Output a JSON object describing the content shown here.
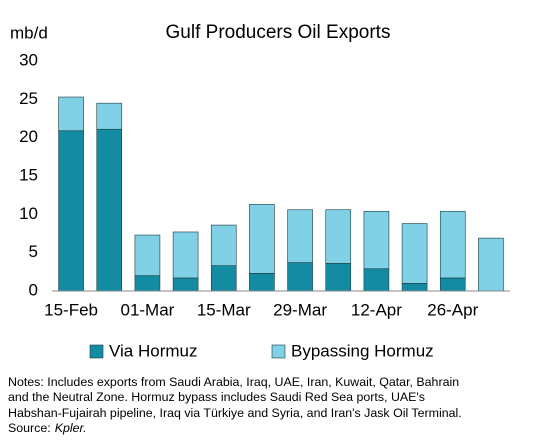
{
  "chart_data": {
    "type": "stacked_bar",
    "title": "Gulf Producers Oil Exports",
    "y_label": "mb/d",
    "categories": [
      "15-Feb",
      null,
      "01-Mar",
      null,
      "15-Mar",
      null,
      "29-Mar",
      null,
      "12-Apr",
      null,
      "26-Apr",
      null
    ],
    "series": [
      {
        "name": "Via Hormuz",
        "color": "#138ca3",
        "values": [
          20.9,
          21.1,
          2.0,
          1.7,
          3.3,
          2.3,
          3.7,
          3.6,
          2.9,
          1.0,
          1.7,
          0
        ]
      },
      {
        "name": "Bypassing Hormuz",
        "color": "#80d0e6",
        "values": [
          4.4,
          3.4,
          5.3,
          6.0,
          5.3,
          9.0,
          6.9,
          7.0,
          7.5,
          7.8,
          8.7,
          6.9
        ]
      }
    ],
    "ylim": [
      0,
      30
    ],
    "yticks": [
      0,
      5,
      10,
      15,
      20,
      25,
      30
    ],
    "grid": false,
    "legend_position": "bottom"
  },
  "notes": [
    "Notes: Includes exports from Saudi Arabia, Iraq, UAE, Iran, Kuwait, Qatar, Bahrain",
    "and the Neutral Zone. Hormuz bypass includes Saudi Red Sea ports, UAE's",
    "Habshan-Fujairah pipeline, Iraq via Türkiye and Syria, and Iran's Jask Oil Terminal."
  ],
  "source_label": "Source:",
  "source": "Kpler."
}
